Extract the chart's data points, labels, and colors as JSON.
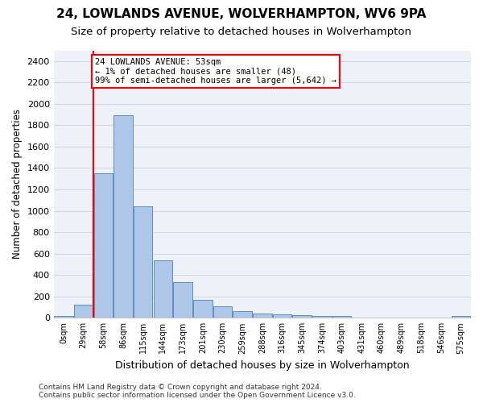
{
  "title_line1": "24, LOWLANDS AVENUE, WOLVERHAMPTON, WV6 9PA",
  "title_line2": "Size of property relative to detached houses in Wolverhampton",
  "xlabel": "Distribution of detached houses by size in Wolverhampton",
  "ylabel": "Number of detached properties",
  "footer": "Contains HM Land Registry data © Crown copyright and database right 2024.\nContains public sector information licensed under the Open Government Licence v3.0.",
  "bar_labels": [
    "0sqm",
    "29sqm",
    "58sqm",
    "86sqm",
    "115sqm",
    "144sqm",
    "173sqm",
    "201sqm",
    "230sqm",
    "259sqm",
    "288sqm",
    "316sqm",
    "345sqm",
    "374sqm",
    "403sqm",
    "431sqm",
    "460sqm",
    "489sqm",
    "518sqm",
    "546sqm",
    "575sqm"
  ],
  "bar_values": [
    15,
    125,
    1350,
    1890,
    1040,
    540,
    335,
    165,
    110,
    65,
    40,
    30,
    25,
    20,
    20,
    5,
    5,
    5,
    5,
    0,
    20
  ],
  "bar_color": "#aec6e8",
  "bar_edge_color": "#5a8fc2",
  "ylim": [
    0,
    2500
  ],
  "yticks": [
    0,
    200,
    400,
    600,
    800,
    1000,
    1200,
    1400,
    1600,
    1800,
    2000,
    2200,
    2400
  ],
  "annotation_text": "24 LOWLANDS AVENUE: 53sqm\n← 1% of detached houses are smaller (48)\n99% of semi-detached houses are larger (5,642) →",
  "annotation_box_color": "white",
  "annotation_box_edge": "red",
  "background_color": "#eef2f8",
  "grid_color": "#d0d8e8",
  "title1_fontsize": 11,
  "title2_fontsize": 9.5,
  "xlabel_fontsize": 9,
  "ylabel_fontsize": 8.5,
  "footer_fontsize": 6.5
}
